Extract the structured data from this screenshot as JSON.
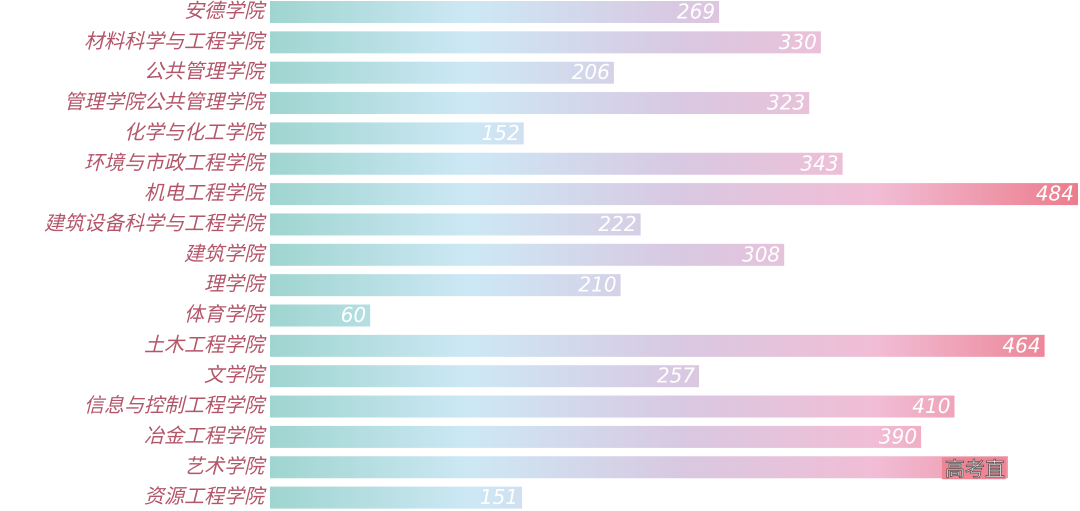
{
  "chart_data": {
    "type": "hbar",
    "categories": [
      "安德学院",
      "材料科学与工程学院",
      "公共管理学院",
      "管理学院公共管理学院",
      "化学与化工学院",
      "环境与市政工程学院",
      "机电工程学院",
      "建筑设备科学与工程学院",
      "建筑学院",
      "理学院",
      "体育学院",
      "土木工程学院",
      "文学院",
      "信息与控制工程学院",
      "冶金工程学院",
      "艺术学院",
      "资源工程学院"
    ],
    "values": [
      269,
      330,
      206,
      323,
      152,
      343,
      484,
      222,
      308,
      210,
      60,
      464,
      257,
      410,
      390,
      442,
      151
    ],
    "gradient": [
      "#9fd5d0",
      "#cde8f5",
      "#d8c9e2",
      "#f1bdd5",
      "#ec7c8c"
    ],
    "watermark": "高考直"
  }
}
